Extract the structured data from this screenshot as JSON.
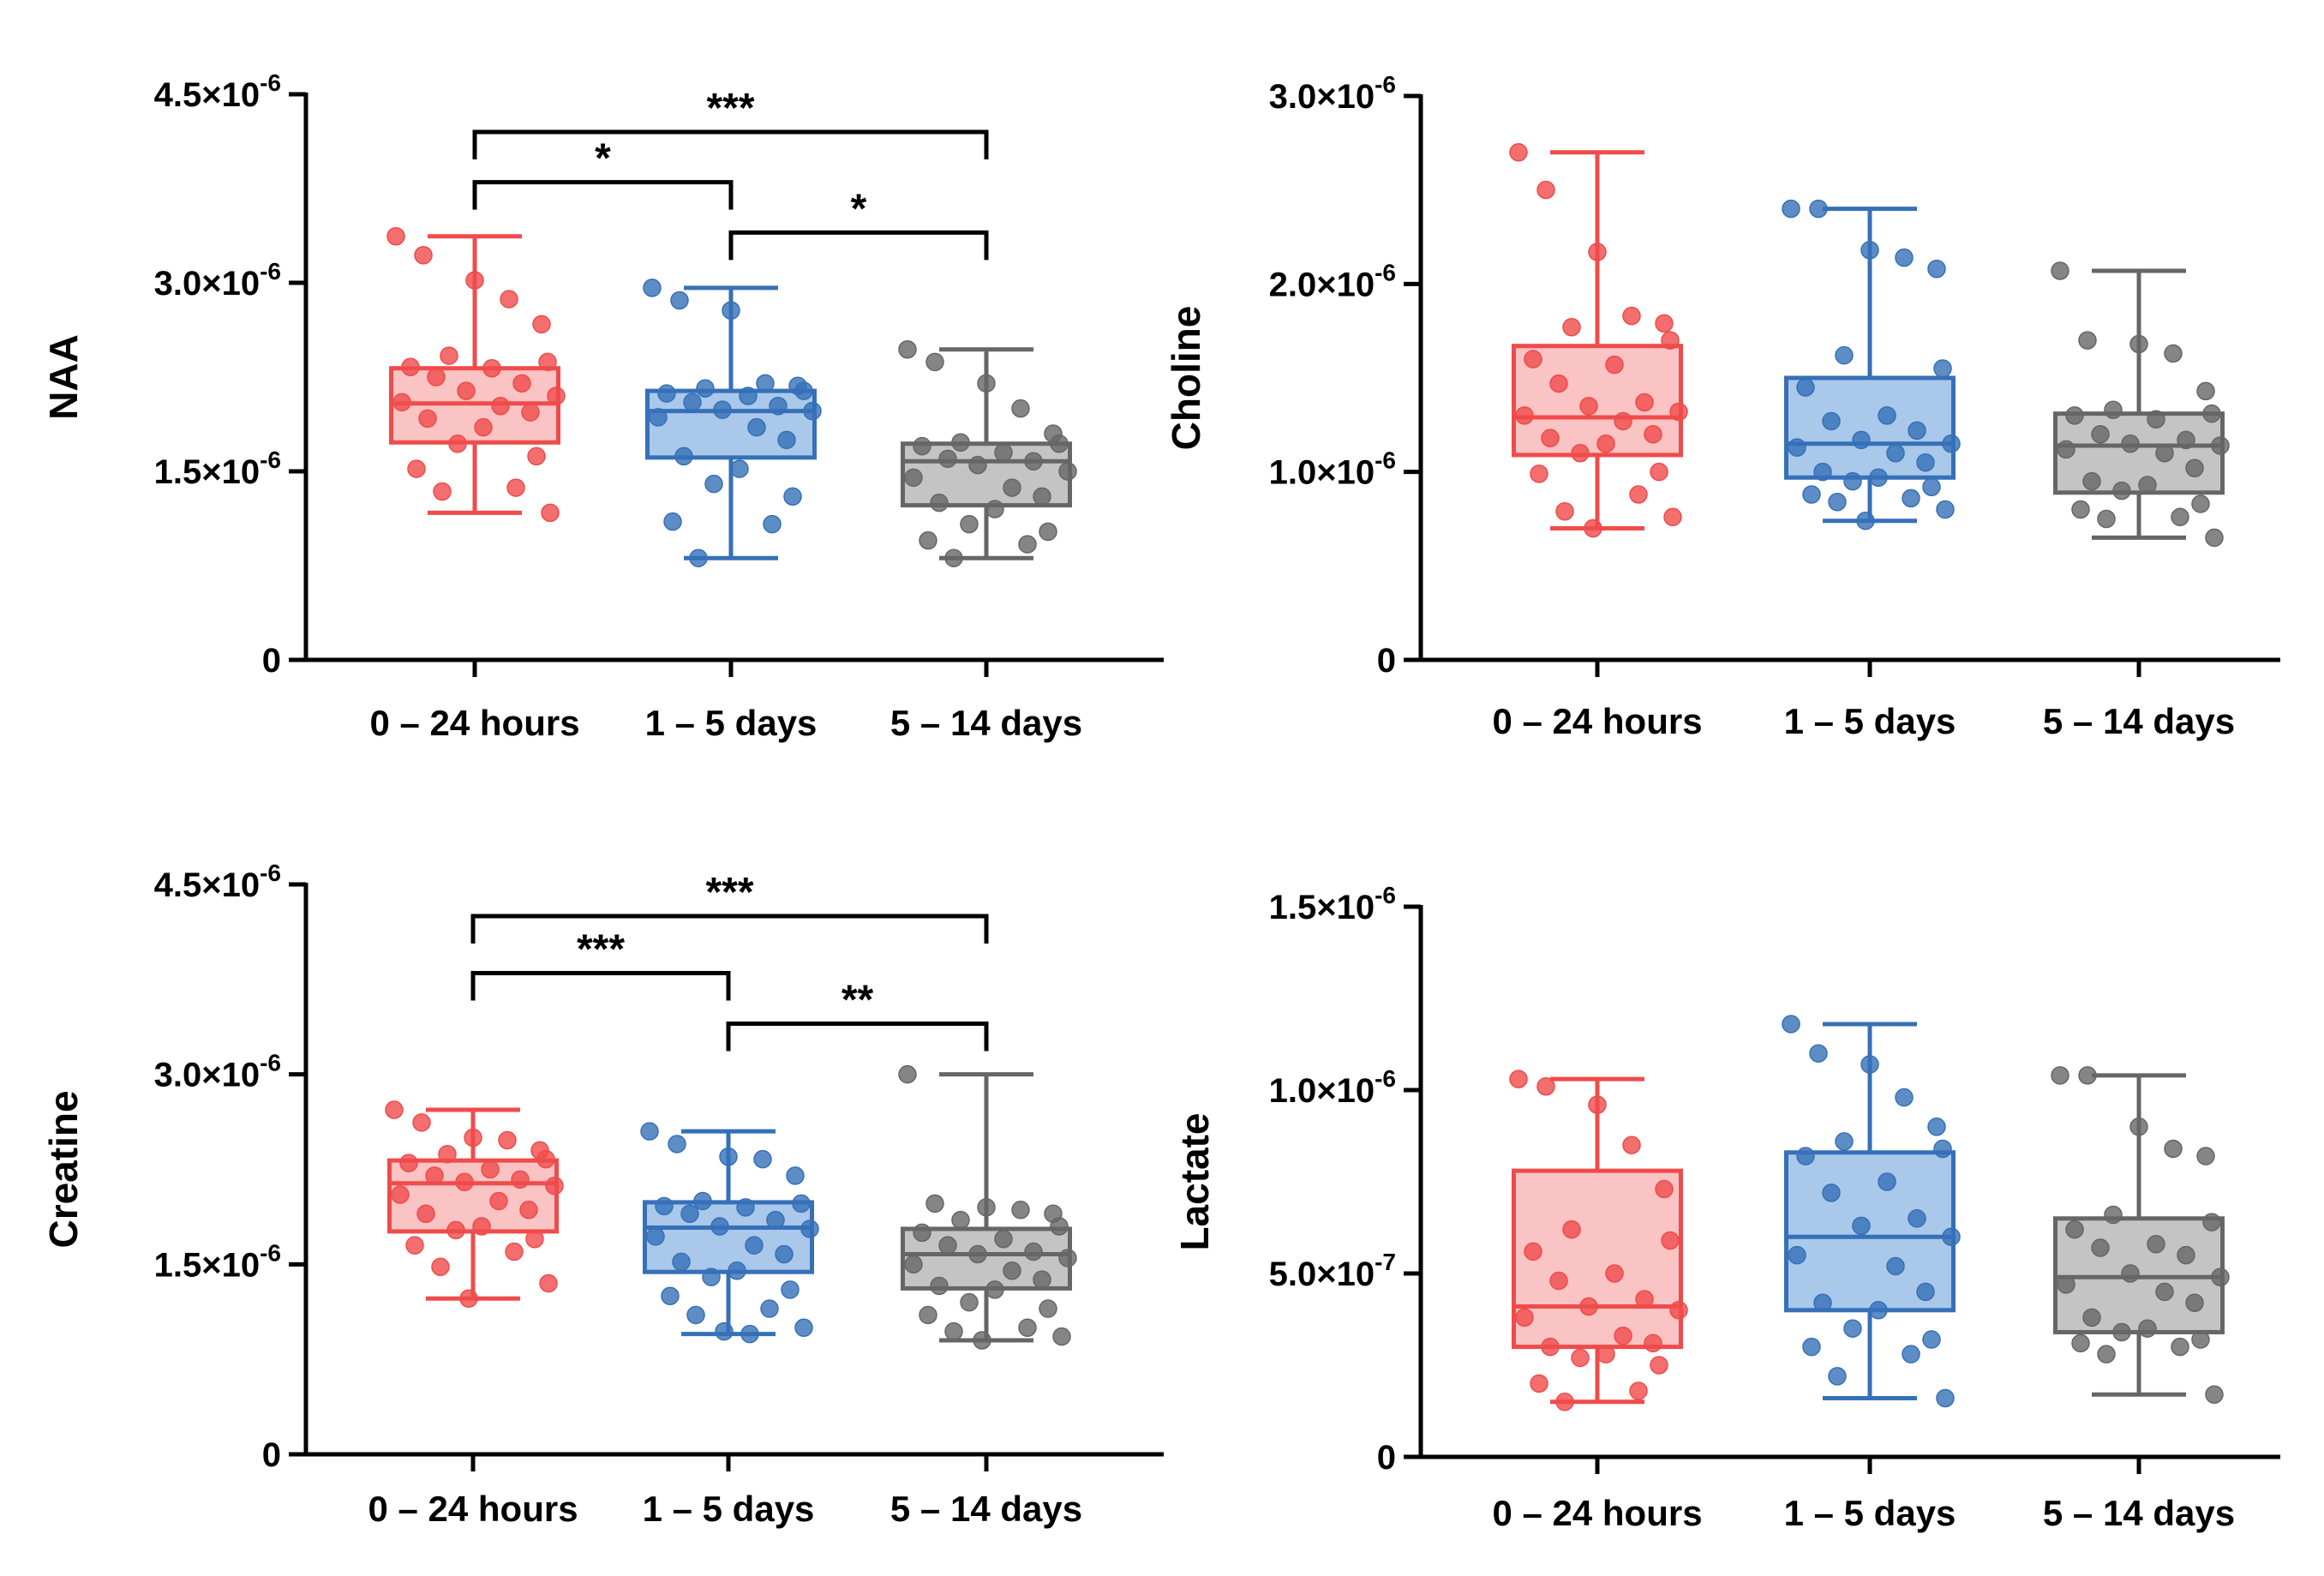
{
  "chart_data": [
    {
      "type": "box",
      "title": "",
      "xlabel": "",
      "ylabel": "NAA",
      "ylim": [
        0,
        4.5e-06
      ],
      "yticks": [
        {
          "value": 0,
          "mantissa": "0",
          "exp": ""
        },
        {
          "value": 1.5e-06,
          "mantissa": "1.5×10",
          "exp": "-6"
        },
        {
          "value": 3e-06,
          "mantissa": "3.0×10",
          "exp": "-6"
        },
        {
          "value": 4.5e-06,
          "mantissa": "4.5×10",
          "exp": "-6"
        }
      ],
      "categories": [
        "0 – 24 hours",
        "1 – 5 days",
        "5 – 14 days"
      ],
      "series": [
        {
          "name": "0 – 24 hours",
          "color": "#f04b4b",
          "fill": "#fbc4c4",
          "min": 1.17e-06,
          "q1": 1.73e-06,
          "median": 2.04e-06,
          "q3": 2.32e-06,
          "max": 3.37e-06,
          "points": [
            3.37e-06,
            3.22e-06,
            3.02e-06,
            2.87e-06,
            2.67e-06,
            2.42e-06,
            2.37e-06,
            2.33e-06,
            2.32e-06,
            2.25e-06,
            2.2e-06,
            2.14e-06,
            2.1e-06,
            2.05e-06,
            2.02e-06,
            1.97e-06,
            1.92e-06,
            1.85e-06,
            1.72e-06,
            1.62e-06,
            1.52e-06,
            1.37e-06,
            1.34e-06,
            1.17e-06
          ]
        },
        {
          "name": "1 – 5 days",
          "color": "#3670b8",
          "fill": "#a9c8ea",
          "min": 8.1e-07,
          "q1": 1.61e-06,
          "median": 1.98e-06,
          "q3": 2.14e-06,
          "max": 2.96e-06,
          "points": [
            2.96e-06,
            2.86e-06,
            2.78e-06,
            2.2e-06,
            2.18e-06,
            2.16e-06,
            2.14e-06,
            2.12e-06,
            2.1e-06,
            2.05e-06,
            2.02e-06,
            1.99e-06,
            1.98e-06,
            1.93e-06,
            1.85e-06,
            1.75e-06,
            1.62e-06,
            1.52e-06,
            1.4e-06,
            1.3e-06,
            1.1e-06,
            1.08e-06,
            8.1e-07
          ]
        },
        {
          "name": "5 – 14 days",
          "color": "#666666",
          "fill": "#c4c4c4",
          "min": 8.1e-07,
          "q1": 1.23e-06,
          "median": 1.58e-06,
          "q3": 1.72e-06,
          "max": 2.47e-06,
          "points": [
            2.47e-06,
            2.37e-06,
            2.2e-06,
            2e-06,
            1.8e-06,
            1.73e-06,
            1.72e-06,
            1.7e-06,
            1.65e-06,
            1.6e-06,
            1.58e-06,
            1.55e-06,
            1.5e-06,
            1.45e-06,
            1.37e-06,
            1.3e-06,
            1.25e-06,
            1.2e-06,
            1.08e-06,
            1.02e-06,
            9.5e-07,
            9.2e-07,
            8.1e-07
          ]
        }
      ],
      "significance": [
        {
          "from": 0,
          "to": 2,
          "label": "***",
          "y": 4.2e-06
        },
        {
          "from": 0,
          "to": 1,
          "label": "*",
          "y": 3.8e-06
        },
        {
          "from": 1,
          "to": 2,
          "label": "*",
          "y": 3.4e-06
        }
      ]
    },
    {
      "type": "box",
      "title": "",
      "xlabel": "",
      "ylabel": "Choline",
      "ylim": [
        0,
        3e-06
      ],
      "yticks": [
        {
          "value": 0,
          "mantissa": "0",
          "exp": ""
        },
        {
          "value": 1e-06,
          "mantissa": "1.0×10",
          "exp": "-6"
        },
        {
          "value": 2e-06,
          "mantissa": "2.0×10",
          "exp": "-6"
        },
        {
          "value": 3e-06,
          "mantissa": "3.0×10",
          "exp": "-6"
        }
      ],
      "categories": [
        "0 – 24 hours",
        "1 – 5 days",
        "5 – 14 days"
      ],
      "series": [
        {
          "name": "0 – 24 hours",
          "color": "#f04b4b",
          "fill": "#fbc4c4",
          "min": 7e-07,
          "q1": 1.09e-06,
          "median": 1.29e-06,
          "q3": 1.67e-06,
          "max": 2.7e-06,
          "points": [
            2.7e-06,
            2.5e-06,
            2.17e-06,
            1.83e-06,
            1.79e-06,
            1.77e-06,
            1.7e-06,
            1.6e-06,
            1.57e-06,
            1.47e-06,
            1.37e-06,
            1.35e-06,
            1.32e-06,
            1.3e-06,
            1.27e-06,
            1.2e-06,
            1.18e-06,
            1.15e-06,
            1.1e-06,
            1e-06,
            9.9e-07,
            8.8e-07,
            7.9e-07,
            7.6e-07,
            7e-07
          ]
        },
        {
          "name": "1 – 5 days",
          "color": "#3670b8",
          "fill": "#a9c8ea",
          "min": 7.4e-07,
          "q1": 9.7e-07,
          "median": 1.15e-06,
          "q3": 1.5e-06,
          "max": 2.4e-06,
          "points": [
            2.4e-06,
            2.4e-06,
            2.18e-06,
            2.14e-06,
            2.08e-06,
            1.62e-06,
            1.55e-06,
            1.45e-06,
            1.3e-06,
            1.27e-06,
            1.22e-06,
            1.17e-06,
            1.15e-06,
            1.13e-06,
            1.1e-06,
            1.05e-06,
            1e-06,
            9.7e-07,
            9.5e-07,
            9.2e-07,
            8.8e-07,
            8.6e-07,
            8.4e-07,
            8e-07,
            7.4e-07
          ]
        },
        {
          "name": "5 – 14 days",
          "color": "#666666",
          "fill": "#c4c4c4",
          "min": 6.5e-07,
          "q1": 8.9e-07,
          "median": 1.14e-06,
          "q3": 1.31e-06,
          "max": 2.07e-06,
          "points": [
            2.07e-06,
            1.7e-06,
            1.68e-06,
            1.63e-06,
            1.43e-06,
            1.33e-06,
            1.31e-06,
            1.3e-06,
            1.28e-06,
            1.2e-06,
            1.17e-06,
            1.15e-06,
            1.14e-06,
            1.12e-06,
            1.1e-06,
            1.02e-06,
            9.5e-07,
            9.3e-07,
            9e-07,
            8.3e-07,
            8e-07,
            7.6e-07,
            7.5e-07,
            6.5e-07
          ]
        }
      ],
      "significance": []
    },
    {
      "type": "box",
      "title": "",
      "xlabel": "",
      "ylabel": "Creatine",
      "ylim": [
        0,
        4.5e-06
      ],
      "yticks": [
        {
          "value": 0,
          "mantissa": "0",
          "exp": ""
        },
        {
          "value": 1.5e-06,
          "mantissa": "1.5×10",
          "exp": "-6"
        },
        {
          "value": 3e-06,
          "mantissa": "3.0×10",
          "exp": "-6"
        },
        {
          "value": 4.5e-06,
          "mantissa": "4.5×10",
          "exp": "-6"
        }
      ],
      "categories": [
        "0 – 24 hours",
        "1 – 5 days",
        "5 – 14 days"
      ],
      "series": [
        {
          "name": "0 – 24 hours",
          "color": "#f04b4b",
          "fill": "#fbc4c4",
          "min": 1.23e-06,
          "q1": 1.76e-06,
          "median": 2.14e-06,
          "q3": 2.32e-06,
          "max": 2.72e-06,
          "points": [
            2.72e-06,
            2.62e-06,
            2.5e-06,
            2.48e-06,
            2.4e-06,
            2.37e-06,
            2.33e-06,
            2.3e-06,
            2.25e-06,
            2.2e-06,
            2.17e-06,
            2.15e-06,
            2.12e-06,
            2.05e-06,
            2e-06,
            1.93e-06,
            1.9e-06,
            1.8e-06,
            1.77e-06,
            1.7e-06,
            1.65e-06,
            1.6e-06,
            1.48e-06,
            1.35e-06,
            1.23e-06
          ]
        },
        {
          "name": "1 – 5 days",
          "color": "#3670b8",
          "fill": "#a9c8ea",
          "min": 9.5e-07,
          "q1": 1.44e-06,
          "median": 1.79e-06,
          "q3": 1.99e-06,
          "max": 2.55e-06,
          "points": [
            2.55e-06,
            2.45e-06,
            2.35e-06,
            2.33e-06,
            2.2e-06,
            2e-06,
            1.98e-06,
            1.96e-06,
            1.95e-06,
            1.9e-06,
            1.85e-06,
            1.8e-06,
            1.78e-06,
            1.72e-06,
            1.65e-06,
            1.58e-06,
            1.52e-06,
            1.45e-06,
            1.4e-06,
            1.3e-06,
            1.25e-06,
            1.15e-06,
            1.1e-06,
            1e-06,
            9.7e-07,
            9.5e-07
          ]
        },
        {
          "name": "5 – 14 days",
          "color": "#666666",
          "fill": "#c4c4c4",
          "min": 9e-07,
          "q1": 1.31e-06,
          "median": 1.58e-06,
          "q3": 1.78e-06,
          "max": 3e-06,
          "points": [
            3e-06,
            1.98e-06,
            1.95e-06,
            1.93e-06,
            1.9e-06,
            1.85e-06,
            1.8e-06,
            1.75e-06,
            1.7e-06,
            1.65e-06,
            1.6e-06,
            1.58e-06,
            1.55e-06,
            1.5e-06,
            1.45e-06,
            1.38e-06,
            1.33e-06,
            1.3e-06,
            1.2e-06,
            1.15e-06,
            1.1e-06,
            1e-06,
            9.7e-07,
            9.3e-07,
            9e-07
          ]
        }
      ],
      "significance": [
        {
          "from": 0,
          "to": 2,
          "label": "***",
          "y": 4.25e-06
        },
        {
          "from": 0,
          "to": 1,
          "label": "***",
          "y": 3.8e-06
        },
        {
          "from": 1,
          "to": 2,
          "label": "**",
          "y": 3.4e-06
        }
      ]
    },
    {
      "type": "box",
      "title": "",
      "xlabel": "",
      "ylabel": "Lactate",
      "ylim": [
        0,
        1.5e-06
      ],
      "yticks": [
        {
          "value": 0,
          "mantissa": "0",
          "exp": ""
        },
        {
          "value": 5e-07,
          "mantissa": "5.0×10",
          "exp": "-7"
        },
        {
          "value": 1e-06,
          "mantissa": "1.0×10",
          "exp": "-6"
        },
        {
          "value": 1.5e-06,
          "mantissa": "1.5×10",
          "exp": "-6"
        }
      ],
      "categories": [
        "0 – 24 hours",
        "1 – 5 days",
        "5 – 14 days"
      ],
      "series": [
        {
          "name": "0 – 24 hours",
          "color": "#f04b4b",
          "fill": "#fbc4c4",
          "min": 1.5e-07,
          "q1": 3e-07,
          "median": 4.1e-07,
          "q3": 7.8e-07,
          "max": 1.03e-06,
          "points": [
            1.03e-06,
            1.01e-06,
            9.6e-07,
            8.5e-07,
            7.3e-07,
            6.2e-07,
            5.9e-07,
            5.6e-07,
            5e-07,
            4.8e-07,
            4.3e-07,
            4.1e-07,
            4e-07,
            3.8e-07,
            3.3e-07,
            3.1e-07,
            3e-07,
            2.8e-07,
            2.7e-07,
            2.5e-07,
            2e-07,
            1.8e-07,
            1.5e-07
          ]
        },
        {
          "name": "1 – 5 days",
          "color": "#3670b8",
          "fill": "#a9c8ea",
          "min": 1.6e-07,
          "q1": 4e-07,
          "median": 6e-07,
          "q3": 8.3e-07,
          "max": 1.18e-06,
          "points": [
            1.18e-06,
            1.1e-06,
            1.07e-06,
            9.8e-07,
            9e-07,
            8.6e-07,
            8.4e-07,
            8.2e-07,
            7.5e-07,
            7.2e-07,
            6.5e-07,
            6.3e-07,
            6e-07,
            5.5e-07,
            5.2e-07,
            4.5e-07,
            4.2e-07,
            4e-07,
            3.5e-07,
            3.2e-07,
            3e-07,
            2.8e-07,
            2.2e-07,
            1.6e-07
          ]
        },
        {
          "name": "5 – 14 days",
          "color": "#666666",
          "fill": "#c4c4c4",
          "min": 1.7e-07,
          "q1": 3.4e-07,
          "median": 4.9e-07,
          "q3": 6.5e-07,
          "max": 1.04e-06,
          "points": [
            1.04e-06,
            1.04e-06,
            9e-07,
            8.4e-07,
            8.2e-07,
            6.6e-07,
            6.4e-07,
            6.2e-07,
            5.8e-07,
            5.7e-07,
            5.5e-07,
            5e-07,
            4.9e-07,
            4.7e-07,
            4.5e-07,
            4.2e-07,
            3.8e-07,
            3.5e-07,
            3.4e-07,
            3.2e-07,
            3.1e-07,
            3e-07,
            2.8e-07,
            1.7e-07
          ]
        }
      ],
      "significance": []
    }
  ]
}
